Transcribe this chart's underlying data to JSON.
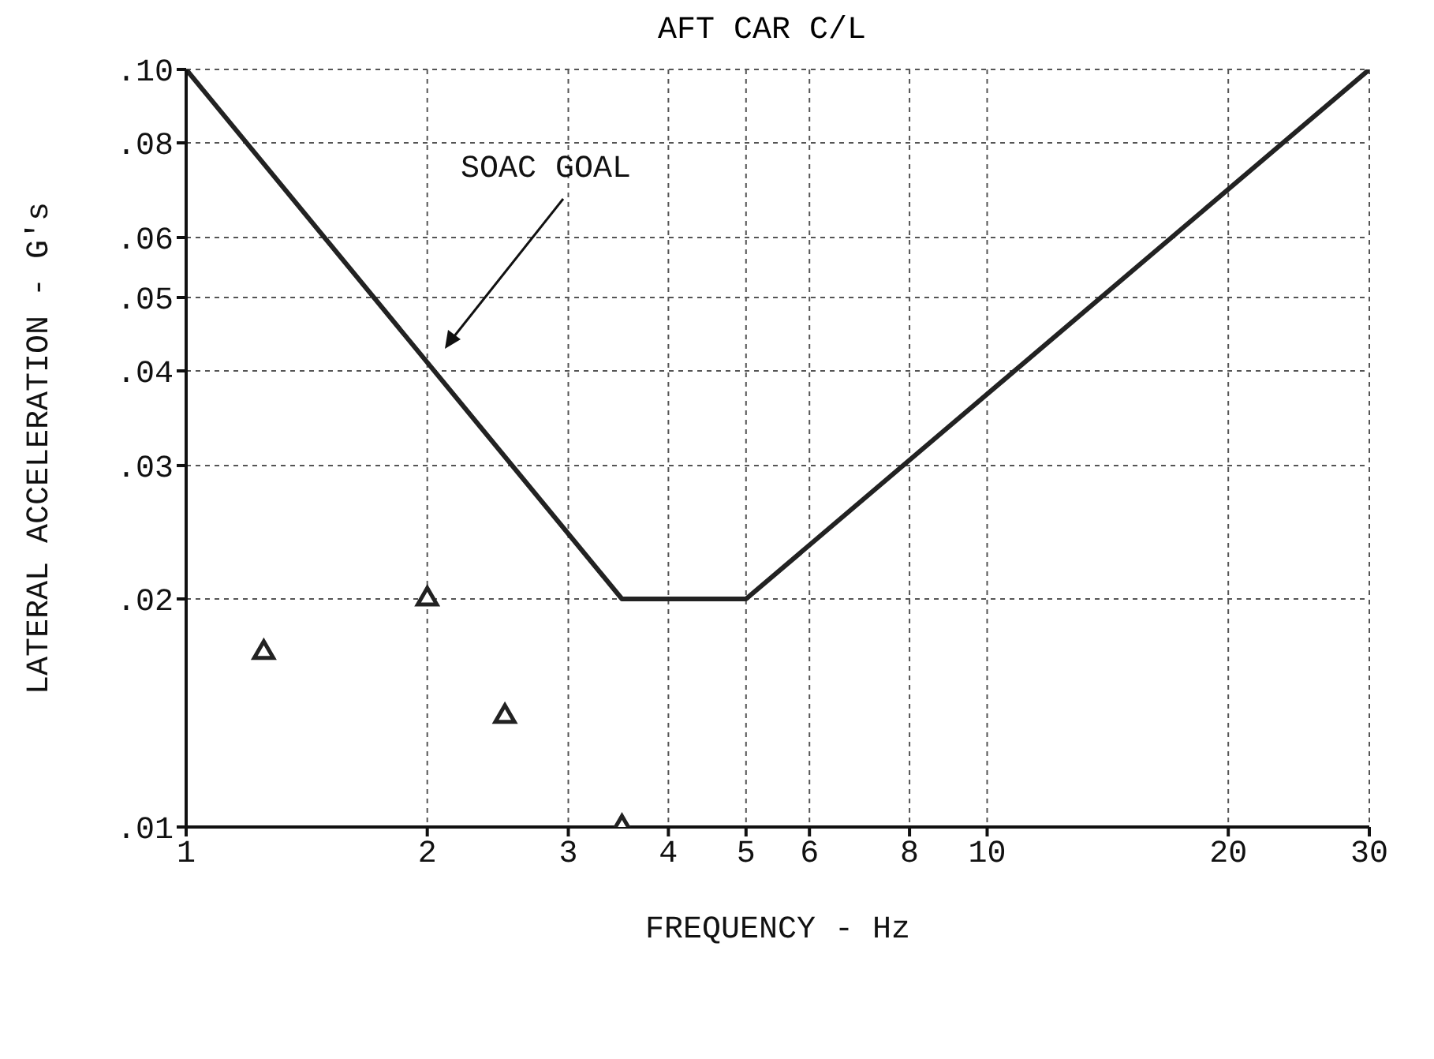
{
  "chart_data": {
    "type": "line",
    "title": "AFT CAR C/L",
    "xlabel": "FREQUENCY - Hz",
    "ylabel": "LATERAL ACCELERATION - G's",
    "log": "xy",
    "grid": true,
    "xlim": [
      1,
      30
    ],
    "xticks": [
      1,
      2,
      3,
      4,
      5,
      6,
      8,
      10,
      20,
      30
    ],
    "ylim": [
      0.01,
      0.1
    ],
    "yticks": [
      {
        "value": 0.01,
        "label": ".01"
      },
      {
        "value": 0.02,
        "label": ".02"
      },
      {
        "value": 0.03,
        "label": ".03"
      },
      {
        "value": 0.04,
        "label": ".04"
      },
      {
        "value": 0.05,
        "label": ".05"
      },
      {
        "value": 0.06,
        "label": ".06"
      },
      {
        "value": 0.08,
        "label": ".08"
      },
      {
        "value": 0.1,
        "label": ".10"
      }
    ],
    "series": [
      {
        "color": "#222222",
        "x": [
          1,
          3.5,
          5,
          30
        ],
        "values": [
          0.1,
          0.02,
          0.02,
          0.1
        ],
        "marker": "none",
        "line_style": "solid"
      },
      {
        "type": "scatter",
        "color": "#222222",
        "x": [
          1.25,
          2.0,
          2.5,
          3.5
        ],
        "values": [
          0.017,
          0.02,
          0.014,
          0.01
        ],
        "marker": "triangle"
      }
    ],
    "annotations": [
      "SOAC GOAL"
    ]
  }
}
